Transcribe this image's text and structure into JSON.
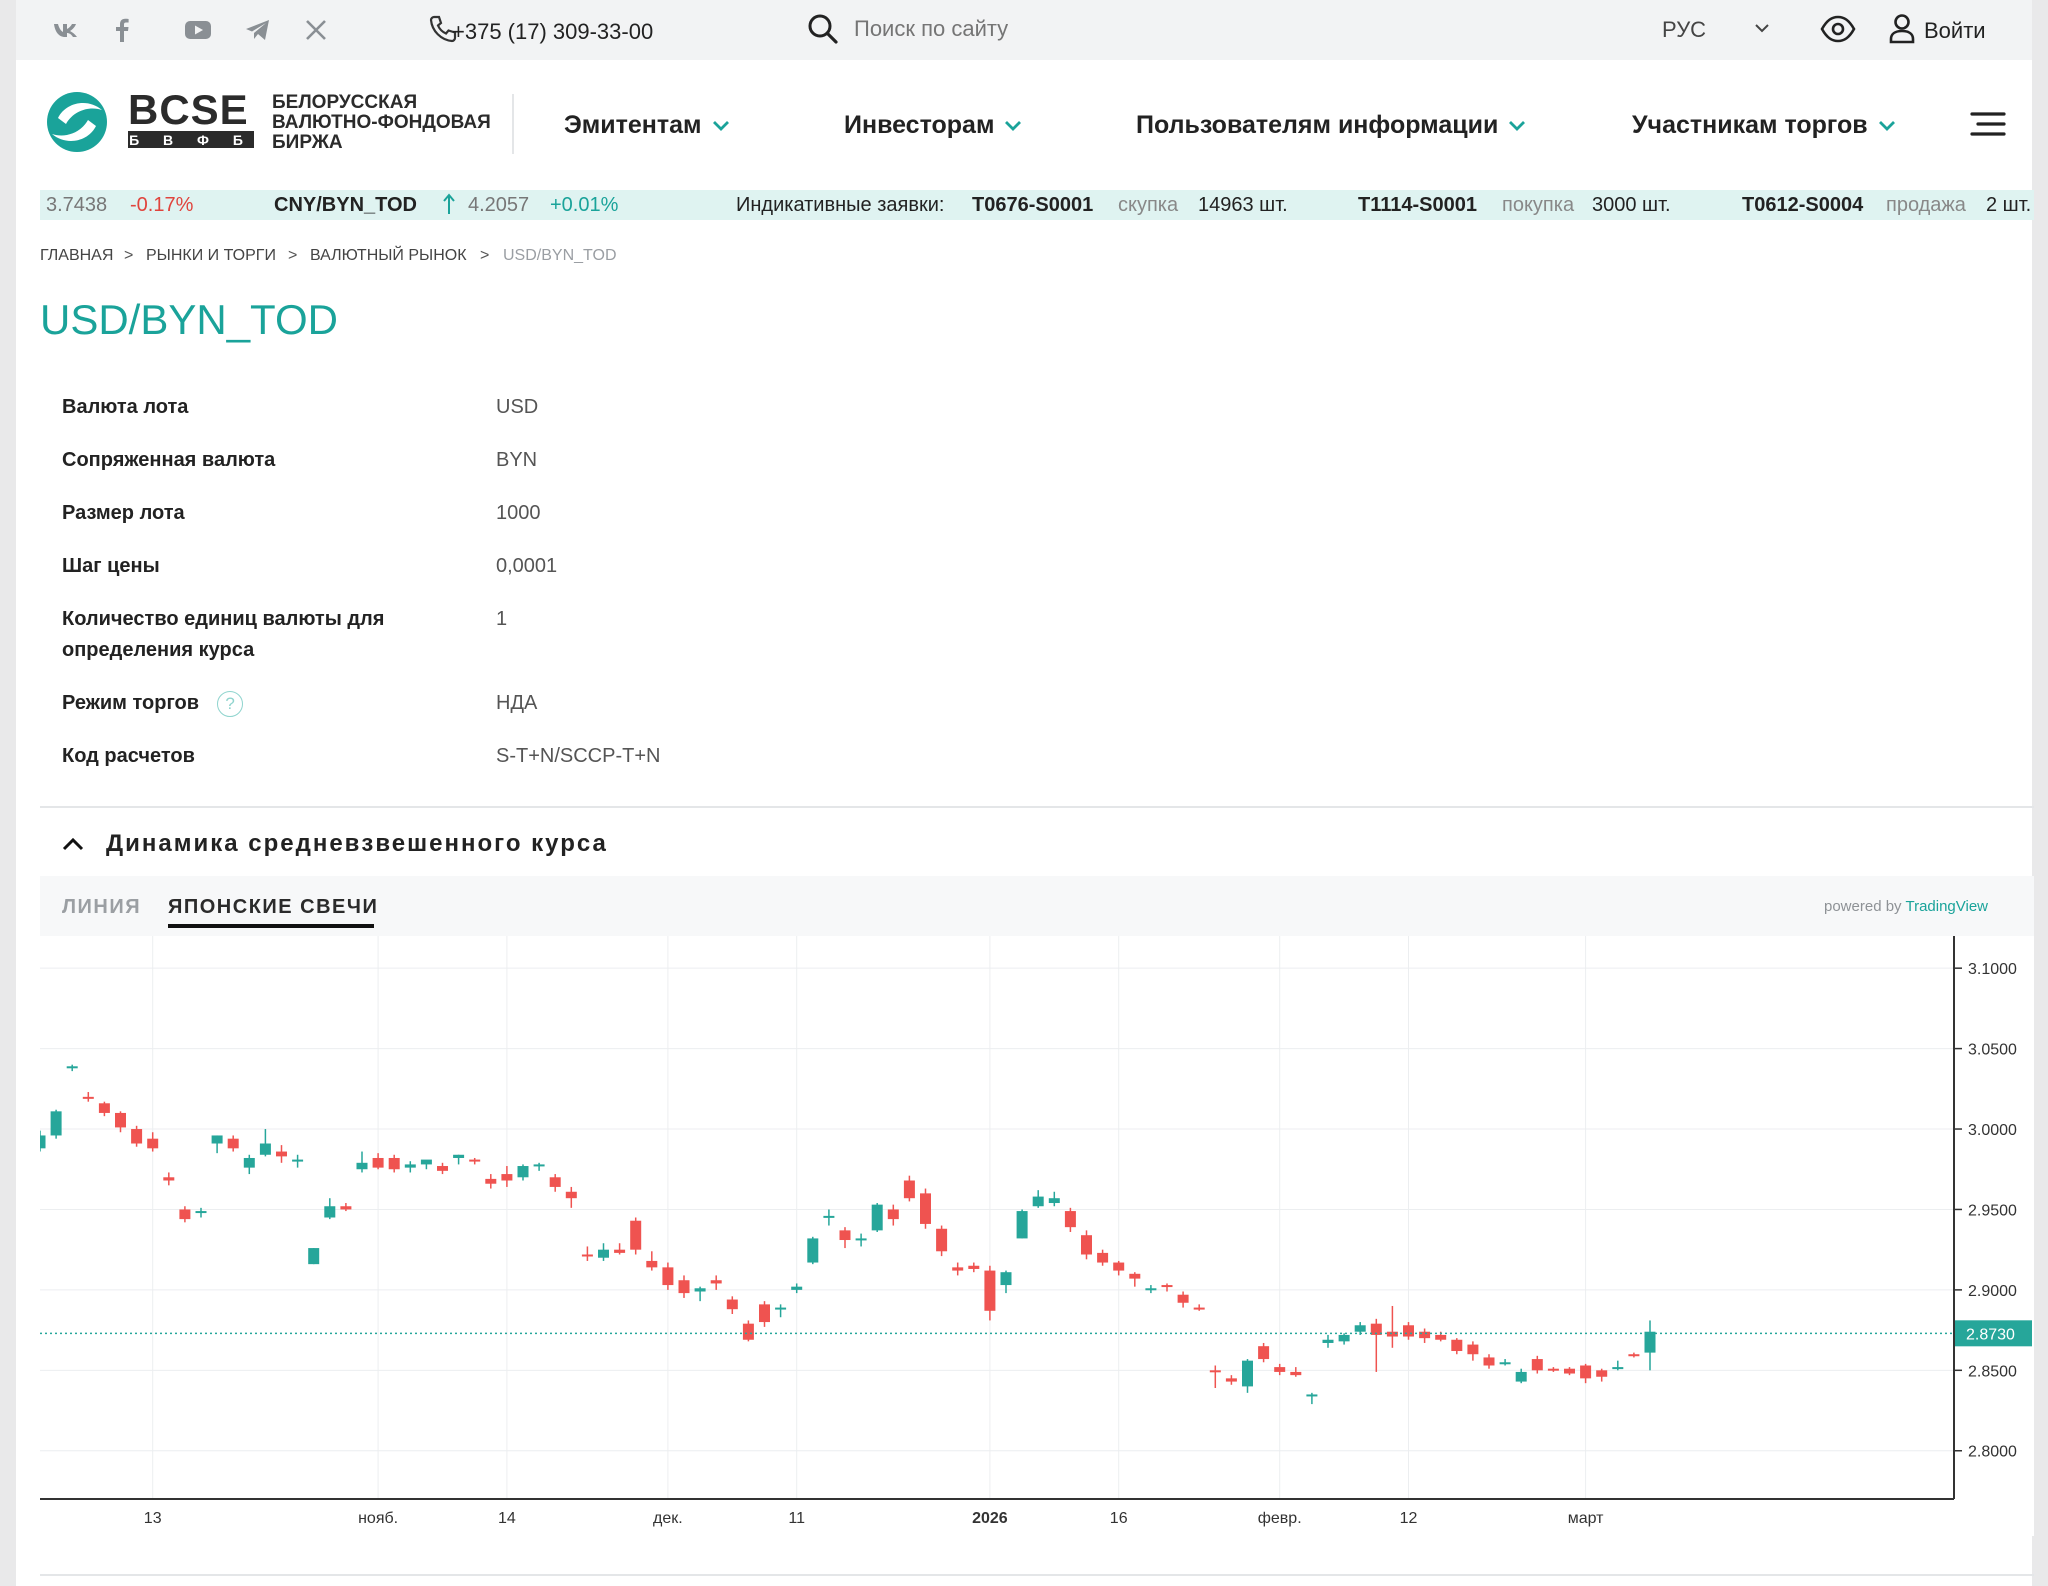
{
  "topbar": {
    "socials": [
      {
        "name": "vk-icon"
      },
      {
        "name": "facebook-icon"
      },
      {
        "name": "youtube-icon"
      },
      {
        "name": "telegram-icon"
      },
      {
        "name": "x-icon"
      }
    ],
    "phone": "+375 (17) 309-33-00",
    "search_placeholder": "Поиск по сайту",
    "language": "РУС",
    "login": "Войти"
  },
  "header": {
    "logo_main": "BCSE",
    "logo_sub": "Б В Ф Б",
    "logo_text": [
      "БЕЛОРУССКАЯ",
      "ВАЛЮТНО-ФОНДОВАЯ",
      "БИРЖА"
    ],
    "nav": [
      "Эмитентам",
      "Инвесторам",
      "Пользователям информации",
      "Участникам торгов"
    ]
  },
  "ticker": {
    "prev_price": "3.7438",
    "prev_change": "-0.17%",
    "pair": "CNY/BYN_TOD",
    "pair_price": "4.2057",
    "pair_change": "+0.01%",
    "orders_label": "Индикативные заявки:",
    "orders": [
      {
        "code": "T0676-S0001",
        "side": "скупка",
        "qty": "14963 шт."
      },
      {
        "code": "T1114-S0001",
        "side": "покупка",
        "qty": "3000 шт."
      },
      {
        "code": "T0612-S0004",
        "side": "продажа",
        "qty": "2 шт."
      }
    ]
  },
  "breadcrumb": [
    "Главная",
    "Рынки и торги",
    "Валютный рынок",
    "USD/BYN_TOD"
  ],
  "page_title": "USD/BYN_TOD",
  "details": [
    {
      "label": "Валюта лота",
      "value": "USD"
    },
    {
      "label": "Сопряженная валюта",
      "value": "BYN"
    },
    {
      "label": "Размер лота",
      "value": "1000"
    },
    {
      "label": "Шаг цены",
      "value": "0,0001"
    },
    {
      "label": "Количество единиц валюты для определения курса",
      "value": "1"
    },
    {
      "label": "Режим торгов",
      "value": "НДА",
      "hint": "?"
    },
    {
      "label": "Код расчетов",
      "value": "S-T+N/SCCP-T+N"
    }
  ],
  "chart_section": {
    "title": "Динамика средневзвешенного курса",
    "tabs": [
      "ЛИНИЯ",
      "ЯПОНСКИЕ СВЕЧИ"
    ],
    "active_tab": 1,
    "powered_by": "powered by",
    "provider": "TradingView"
  },
  "chart_data": {
    "type": "candlestick",
    "colors": {
      "up": "#26a69a",
      "down": "#ef5350"
    },
    "y_ticks": [
      "2.8000",
      "2.8500",
      "2.9000",
      "2.9500",
      "3.0000",
      "3.0500",
      "3.1000"
    ],
    "ylim": [
      2.77,
      3.12
    ],
    "last_price": "2.8730",
    "last_price_value": 2.873,
    "x_ticks": [
      {
        "i": 7,
        "label": "13"
      },
      {
        "i": 21,
        "label": "нояб."
      },
      {
        "i": 29,
        "label": "14"
      },
      {
        "i": 39,
        "label": "дек."
      },
      {
        "i": 47,
        "label": "11"
      },
      {
        "i": 59,
        "label": "2026",
        "bold": true
      },
      {
        "i": 67,
        "label": "16"
      },
      {
        "i": 77,
        "label": "февр."
      },
      {
        "i": 85,
        "label": "12"
      },
      {
        "i": 96,
        "label": "март"
      }
    ],
    "candles": [
      [
        2.988,
        2.999,
        2.986,
        2.996
      ],
      [
        2.996,
        3.012,
        2.994,
        3.011
      ],
      [
        3.038,
        3.04,
        3.036,
        3.039
      ],
      [
        3.02,
        3.023,
        3.017,
        3.019
      ],
      [
        3.016,
        3.017,
        3.008,
        3.01
      ],
      [
        3.01,
        3.011,
        2.998,
        3.001
      ],
      [
        3.0,
        3.002,
        2.989,
        2.991
      ],
      [
        2.994,
        2.998,
        2.986,
        2.988
      ],
      [
        2.97,
        2.973,
        2.965,
        2.968
      ],
      [
        2.95,
        2.952,
        2.942,
        2.944
      ],
      [
        2.948,
        2.951,
        2.945,
        2.949
      ],
      [
        2.991,
        2.996,
        2.985,
        2.996
      ],
      [
        2.994,
        2.996,
        2.986,
        2.988
      ],
      [
        2.976,
        2.984,
        2.972,
        2.982
      ],
      [
        2.984,
        3.0,
        2.983,
        2.991
      ],
      [
        2.986,
        2.99,
        2.979,
        2.983
      ],
      [
        2.98,
        2.984,
        2.976,
        2.981
      ],
      [
        2.916,
        2.926,
        2.916,
        2.926
      ],
      [
        2.945,
        2.957,
        2.944,
        2.952
      ],
      [
        2.952,
        2.954,
        2.949,
        2.95
      ],
      [
        2.975,
        2.986,
        2.973,
        2.979
      ],
      [
        2.982,
        2.985,
        2.975,
        2.976
      ],
      [
        2.982,
        2.984,
        2.973,
        2.975
      ],
      [
        2.976,
        2.98,
        2.973,
        2.978
      ],
      [
        2.978,
        2.98,
        2.975,
        2.981
      ],
      [
        2.977,
        2.979,
        2.972,
        2.974
      ],
      [
        2.982,
        2.984,
        2.978,
        2.984
      ],
      [
        2.981,
        2.982,
        2.978,
        2.98
      ],
      [
        2.969,
        2.972,
        2.963,
        2.966
      ],
      [
        2.972,
        2.977,
        2.964,
        2.968
      ],
      [
        2.97,
        2.978,
        2.968,
        2.977
      ],
      [
        2.977,
        2.979,
        2.974,
        2.978
      ],
      [
        2.97,
        2.972,
        2.961,
        2.964
      ],
      [
        2.961,
        2.964,
        2.951,
        2.957
      ],
      [
        2.922,
        2.927,
        2.918,
        2.921
      ],
      [
        2.92,
        2.929,
        2.918,
        2.925
      ],
      [
        2.925,
        2.929,
        2.922,
        2.923
      ],
      [
        2.943,
        2.945,
        2.922,
        2.925
      ],
      [
        2.918,
        2.924,
        2.912,
        2.914
      ],
      [
        2.914,
        2.917,
        2.9,
        2.903
      ],
      [
        2.906,
        2.909,
        2.895,
        2.898
      ],
      [
        2.899,
        2.902,
        2.893,
        2.901
      ],
      [
        2.906,
        2.909,
        2.9,
        2.904
      ],
      [
        2.894,
        2.896,
        2.885,
        2.888
      ],
      [
        2.879,
        2.881,
        2.868,
        2.869
      ],
      [
        2.891,
        2.893,
        2.877,
        2.88
      ],
      [
        2.888,
        2.891,
        2.883,
        2.889
      ],
      [
        2.9,
        2.904,
        2.898,
        2.902
      ],
      [
        2.917,
        2.933,
        2.916,
        2.932
      ],
      [
        2.945,
        2.95,
        2.94,
        2.946
      ],
      [
        2.937,
        2.939,
        2.926,
        2.931
      ],
      [
        2.931,
        2.935,
        2.927,
        2.932
      ],
      [
        2.937,
        2.954,
        2.936,
        2.953
      ],
      [
        2.95,
        2.953,
        2.94,
        2.944
      ],
      [
        2.968,
        2.971,
        2.955,
        2.957
      ],
      [
        2.96,
        2.963,
        2.938,
        2.941
      ],
      [
        2.938,
        2.94,
        2.921,
        2.924
      ],
      [
        2.914,
        2.917,
        2.909,
        2.912
      ],
      [
        2.915,
        2.917,
        2.911,
        2.913
      ],
      [
        2.912,
        2.915,
        2.881,
        2.887
      ],
      [
        2.903,
        2.912,
        2.898,
        2.911
      ],
      [
        2.932,
        2.95,
        2.932,
        2.949
      ],
      [
        2.952,
        2.962,
        2.951,
        2.958
      ],
      [
        2.954,
        2.961,
        2.952,
        2.957
      ],
      [
        2.949,
        2.951,
        2.936,
        2.939
      ],
      [
        2.934,
        2.937,
        2.919,
        2.922
      ],
      [
        2.923,
        2.925,
        2.915,
        2.917
      ],
      [
        2.917,
        2.918,
        2.909,
        2.912
      ],
      [
        2.91,
        2.911,
        2.902,
        2.907
      ],
      [
        2.901,
        2.903,
        2.898,
        2.901
      ],
      [
        2.903,
        2.904,
        2.899,
        2.902
      ],
      [
        2.897,
        2.899,
        2.889,
        2.892
      ],
      [
        2.889,
        2.891,
        2.887,
        2.888
      ],
      [
        2.85,
        2.853,
        2.839,
        2.849
      ],
      [
        2.845,
        2.847,
        2.841,
        2.843
      ],
      [
        2.84,
        2.857,
        2.836,
        2.856
      ],
      [
        2.865,
        2.867,
        2.855,
        2.857
      ],
      [
        2.852,
        2.854,
        2.847,
        2.849
      ],
      [
        2.849,
        2.852,
        2.846,
        2.847
      ],
      [
        2.835,
        2.836,
        2.829,
        2.835
      ],
      [
        2.867,
        2.872,
        2.864,
        2.869
      ],
      [
        2.868,
        2.873,
        2.866,
        2.872
      ],
      [
        2.874,
        2.88,
        2.872,
        2.878
      ],
      [
        2.879,
        2.882,
        2.849,
        2.872
      ],
      [
        2.874,
        2.89,
        2.864,
        2.871
      ],
      [
        2.878,
        2.88,
        2.869,
        2.871
      ],
      [
        2.874,
        2.876,
        2.867,
        2.87
      ],
      [
        2.872,
        2.874,
        2.868,
        2.869
      ],
      [
        2.869,
        2.87,
        2.86,
        2.862
      ],
      [
        2.866,
        2.868,
        2.856,
        2.86
      ],
      [
        2.858,
        2.86,
        2.851,
        2.853
      ],
      [
        2.855,
        2.857,
        2.853,
        2.855
      ],
      [
        2.843,
        2.851,
        2.842,
        2.849
      ],
      [
        2.857,
        2.859,
        2.848,
        2.85
      ],
      [
        2.851,
        2.852,
        2.849,
        2.85
      ],
      [
        2.851,
        2.852,
        2.847,
        2.848
      ],
      [
        2.853,
        2.854,
        2.842,
        2.845
      ],
      [
        2.85,
        2.851,
        2.843,
        2.846
      ],
      [
        2.851,
        2.856,
        2.85,
        2.852
      ],
      [
        2.86,
        2.861,
        2.858,
        2.859
      ],
      [
        2.861,
        2.881,
        2.85,
        2.874
      ]
    ]
  }
}
